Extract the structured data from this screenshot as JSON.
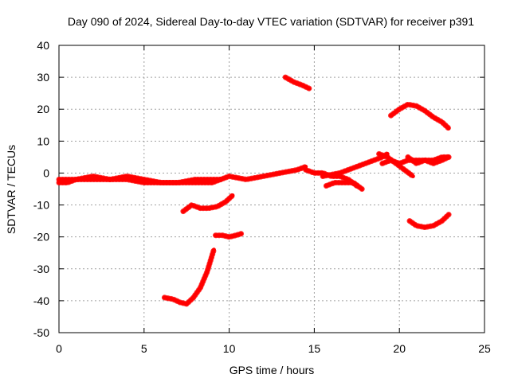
{
  "chart_data": {
    "type": "scatter",
    "title": "Day 090 of 2024, Sidereal Day-to-day VTEC variation (SDTVAR) for receiver p391",
    "xlabel": "GPS time / hours",
    "ylabel": "SDTVAR / TECUs",
    "xlim": [
      0,
      25
    ],
    "ylim": [
      -50,
      40
    ],
    "xticks": [
      0,
      5,
      10,
      15,
      20,
      25
    ],
    "yticks": [
      -50,
      -40,
      -30,
      -20,
      -10,
      0,
      10,
      20,
      30,
      40
    ],
    "grid": true,
    "color": "#ff0000",
    "series": [
      {
        "name": "track-main-baseline",
        "x": [
          0,
          0.5,
          1,
          2,
          3,
          4,
          5,
          6,
          7,
          8,
          9,
          10,
          11,
          12,
          13,
          14,
          14.5
        ],
        "y": [
          -3,
          -3,
          -2,
          -2,
          -2,
          -2,
          -3,
          -3,
          -3,
          -3,
          -3,
          -1,
          -2,
          -1,
          0,
          1,
          2
        ]
      },
      {
        "name": "track-main-baseline-b",
        "x": [
          0,
          1,
          2,
          3,
          4,
          5,
          6,
          7,
          8,
          9,
          9.5
        ],
        "y": [
          -2,
          -2,
          -1,
          -2,
          -1,
          -2,
          -3,
          -3,
          -2,
          -2,
          -2
        ]
      },
      {
        "name": "track-15-18",
        "x": [
          14.5,
          15,
          15.5,
          16,
          16.5,
          17,
          17.5
        ],
        "y": [
          1,
          0,
          0,
          -1,
          -1,
          -2,
          -4
        ]
      },
      {
        "name": "track-15-18-b",
        "x": [
          15.7,
          16.2,
          16.8,
          17.3,
          17.8
        ],
        "y": [
          -4,
          -3,
          -3,
          -3,
          -5
        ]
      },
      {
        "name": "track-16-19",
        "x": [
          15.5,
          16.5,
          17.5,
          18.5,
          19,
          19.3
        ],
        "y": [
          -1,
          0,
          2,
          4,
          5,
          6
        ]
      },
      {
        "name": "track-19-21",
        "x": [
          18.8,
          19.3,
          19.8,
          20.3,
          20.8
        ],
        "y": [
          6,
          5,
          3,
          1,
          -1
        ]
      },
      {
        "name": "track-19-23",
        "x": [
          19,
          19.5,
          20,
          20.5,
          21,
          21.5,
          22,
          22.5,
          22.9
        ],
        "y": [
          3,
          4,
          3,
          4,
          4,
          4,
          4,
          5,
          5
        ]
      },
      {
        "name": "track-20-23-b",
        "x": [
          20.5,
          21,
          21.5,
          22,
          22.5,
          22.9
        ],
        "y": [
          5,
          3,
          4,
          3,
          4,
          5
        ]
      },
      {
        "name": "track-high-13",
        "x": [
          13.3,
          13.8,
          14.3,
          14.7
        ],
        "y": [
          30,
          28.5,
          27.5,
          26.5
        ]
      },
      {
        "name": "track-arc-19-23",
        "x": [
          19.5,
          20,
          20.5,
          21,
          21.5,
          22,
          22.5,
          22.9
        ],
        "y": [
          18,
          20,
          21.5,
          21,
          19.5,
          17.5,
          16,
          14
        ]
      },
      {
        "name": "track-low-21",
        "x": [
          20.6,
          21,
          21.5,
          22,
          22.5,
          22.9
        ],
        "y": [
          -15,
          -16.5,
          -17,
          -16.5,
          -15,
          -13
        ]
      },
      {
        "name": "track-7-10",
        "x": [
          7.3,
          7.8,
          8.3,
          8.8,
          9.3,
          9.8,
          10.2
        ],
        "y": [
          -12,
          -10,
          -11,
          -11,
          -10.5,
          -9,
          -7
        ]
      },
      {
        "name": "track-9-10",
        "x": [
          9.2,
          9.6,
          10,
          10.4,
          10.7
        ],
        "y": [
          -19.5,
          -19.5,
          -20,
          -19.5,
          -19
        ]
      },
      {
        "name": "track-dip-6-9",
        "x": [
          6.2,
          6.7,
          7.1,
          7.5,
          7.9,
          8.3,
          8.7,
          9.1
        ],
        "y": [
          -39,
          -39.5,
          -40.5,
          -41,
          -39,
          -36,
          -31,
          -24
        ]
      }
    ]
  }
}
